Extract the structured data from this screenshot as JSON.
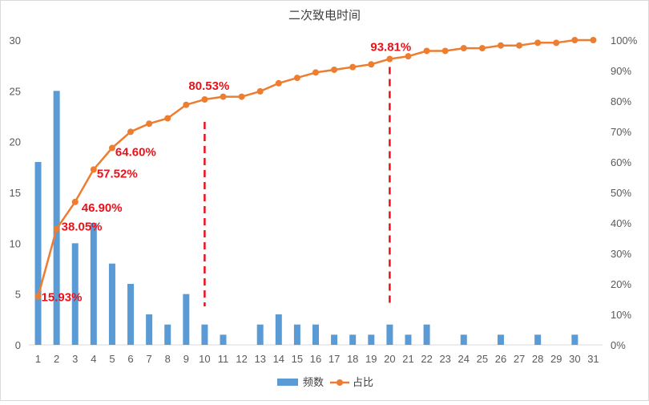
{
  "chart_data": {
    "type": "bar",
    "title": "二次致电时间",
    "xlabel": "",
    "ylabel": "",
    "ylim": [
      0,
      30
    ],
    "y_ticks": [
      0,
      5,
      10,
      15,
      20,
      25,
      30
    ],
    "y2lim": [
      0,
      100
    ],
    "y2_ticks": [
      "0%",
      "10%",
      "20%",
      "30%",
      "40%",
      "50%",
      "60%",
      "70%",
      "80%",
      "90%",
      "100%"
    ],
    "categories": [
      "1",
      "2",
      "3",
      "4",
      "5",
      "6",
      "7",
      "8",
      "9",
      "10",
      "11",
      "12",
      "13",
      "14",
      "15",
      "16",
      "17",
      "18",
      "19",
      "20",
      "21",
      "22",
      "23",
      "24",
      "25",
      "26",
      "27",
      "28",
      "29",
      "30",
      "31"
    ],
    "series": [
      {
        "name": "频数",
        "type": "bar",
        "axis": "left",
        "color": "#5b9bd5",
        "values": [
          18,
          25,
          10,
          12,
          8,
          6,
          3,
          2,
          5,
          2,
          1,
          0,
          2,
          3,
          2,
          2,
          1,
          1,
          1,
          2,
          1,
          2,
          0,
          1,
          0,
          1,
          0,
          1,
          0,
          1,
          0
        ]
      },
      {
        "name": "占比",
        "type": "line",
        "axis": "right",
        "color": "#ed7d31",
        "values": [
          15.93,
          38.05,
          46.9,
          57.52,
          64.6,
          69.91,
          72.57,
          74.34,
          78.76,
          80.53,
          81.42,
          81.42,
          83.19,
          85.84,
          87.61,
          89.38,
          90.27,
          91.15,
          92.04,
          93.81,
          94.69,
          96.46,
          96.46,
          97.35,
          97.35,
          98.23,
          98.23,
          99.12,
          99.12,
          100.0,
          100.0
        ]
      }
    ],
    "annotations": [
      {
        "index": 0,
        "text": "15.93%"
      },
      {
        "index": 1,
        "text": "38.05%"
      },
      {
        "index": 2,
        "text": "46.90%"
      },
      {
        "index": 3,
        "text": "57.52%"
      },
      {
        "index": 4,
        "text": "64.60%"
      },
      {
        "index": 9,
        "text": "80.53%"
      },
      {
        "index": 19,
        "text": "93.81%"
      }
    ],
    "reference_lines": [
      {
        "category": "10",
        "color": "#e8121a",
        "style": "dashed"
      },
      {
        "category": "20",
        "color": "#e8121a",
        "style": "dashed"
      }
    ],
    "grid": false,
    "legend_position": "bottom"
  }
}
